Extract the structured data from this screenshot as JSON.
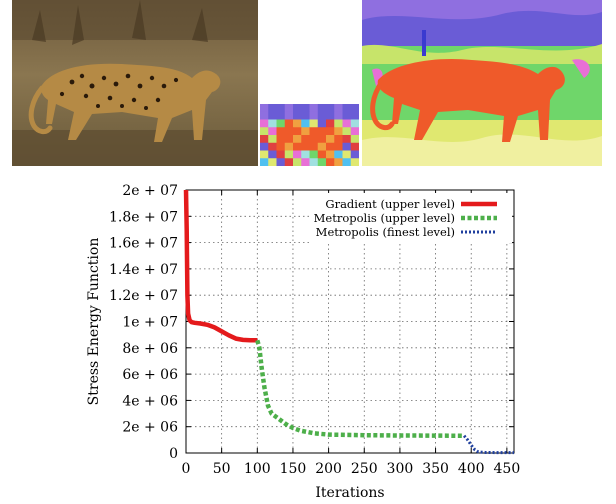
{
  "colors": {
    "gradient": "#e41a1c",
    "metropolis_upper": "#4daf4a",
    "metropolis_finest": "#1f3f9e",
    "photo_background": "#7a6a48"
  },
  "images": {
    "photo_icon": "leopard-photo",
    "coarse_icon": "coarse-segmentation-grid",
    "fine_icon": "fine-segmentation-map"
  },
  "chart_data": {
    "type": "line",
    "xlabel": "Iterations",
    "ylabel": "Stress Energy Function",
    "xlim": [
      0,
      460
    ],
    "ylim": [
      0,
      20000000
    ],
    "grid": true,
    "legend_position": "top-right",
    "x_ticks": [
      "0",
      "50",
      "100",
      "150",
      "200",
      "250",
      "300",
      "350",
      "400",
      "450"
    ],
    "x_tick_values": [
      0,
      50,
      100,
      150,
      200,
      250,
      300,
      350,
      400,
      450
    ],
    "y_ticks": [
      "0",
      "2e + 06",
      "4e + 06",
      "6e + 06",
      "8e + 06",
      "1e + 07",
      "1.2e + 07",
      "1.4e + 07",
      "1.6e + 07",
      "1.8e + 07",
      "2e + 07"
    ],
    "y_tick_values": [
      0,
      2000000,
      4000000,
      6000000,
      8000000,
      10000000,
      12000000,
      14000000,
      16000000,
      18000000,
      20000000
    ],
    "series": [
      {
        "name": "Gradient (upper level)",
        "style": "solid",
        "x": [
          0,
          1,
          2,
          3,
          5,
          8,
          12,
          20,
          30,
          40,
          50,
          60,
          70,
          80,
          90,
          100
        ],
        "y": [
          20000000,
          17000000,
          12000000,
          10600000,
          10100000,
          9950000,
          9900000,
          9850000,
          9750000,
          9550000,
          9250000,
          8950000,
          8700000,
          8600000,
          8580000,
          8570000
        ]
      },
      {
        "name": "Metropolis (upper level)",
        "style": "dashed",
        "x": [
          100,
          103,
          106,
          110,
          115,
          120,
          130,
          140,
          150,
          160,
          180,
          200,
          250,
          300,
          350,
          390
        ],
        "y": [
          8570000,
          8000000,
          6500000,
          5000000,
          3600000,
          3000000,
          2600000,
          2200000,
          1900000,
          1700000,
          1500000,
          1400000,
          1350000,
          1330000,
          1320000,
          1310000
        ]
      },
      {
        "name": "Metropolis (finest level)",
        "style": "dotted",
        "x": [
          390,
          395,
          400,
          405,
          410,
          420,
          440,
          460
        ],
        "y": [
          1310000,
          1000000,
          600000,
          250000,
          80000,
          40000,
          30000,
          30000
        ]
      }
    ]
  }
}
